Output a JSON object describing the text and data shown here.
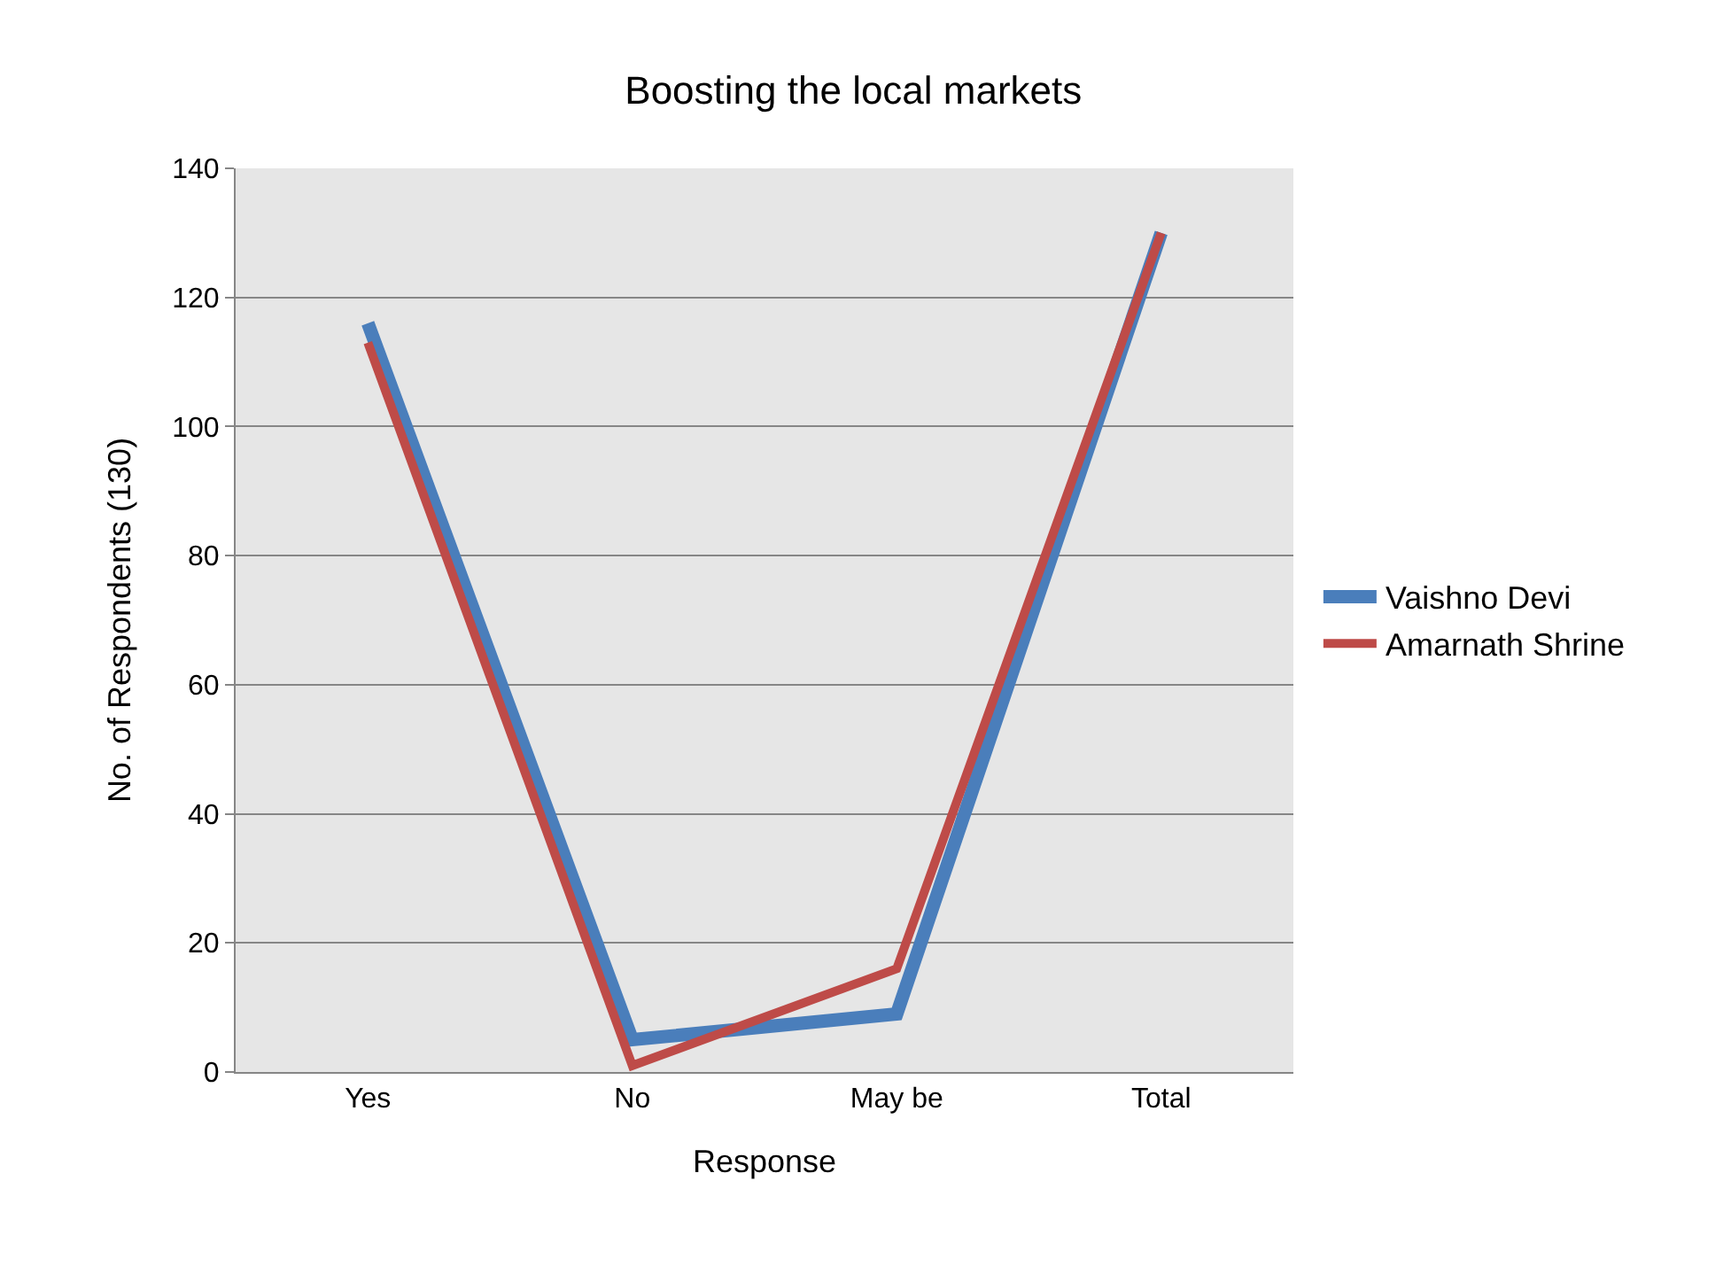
{
  "chart_data": {
    "type": "line",
    "title": "Boosting the local markets",
    "xlabel": "Response",
    "ylabel": "No. of Respondents (130)",
    "categories": [
      "Yes",
      "No",
      "May be",
      "Total"
    ],
    "series": [
      {
        "name": "Vaishno Devi",
        "color": "#4a7ebb",
        "values": [
          116,
          5,
          9,
          130
        ]
      },
      {
        "name": "Amarnath Shrine",
        "color": "#be4b48",
        "values": [
          113,
          1,
          16,
          130
        ]
      }
    ],
    "ylim": [
      0,
      140
    ],
    "yticks": [
      0,
      20,
      40,
      60,
      80,
      100,
      120,
      140
    ],
    "grid": "y",
    "legend": "right",
    "marker": "none",
    "line_style": "solid"
  }
}
